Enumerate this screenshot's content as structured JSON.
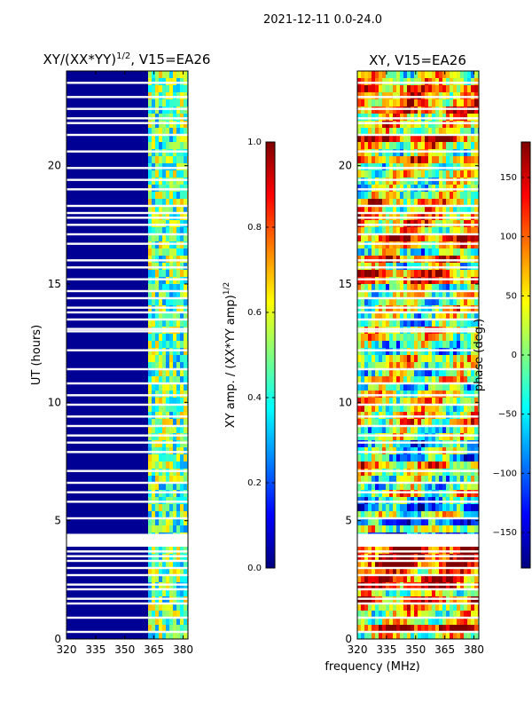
{
  "suptitle": "2021-12-11 0.0-24.0",
  "chart_data": [
    {
      "type": "heatmap",
      "title": "XY/(XX*YY)",
      "title_exponent": "1/2",
      "title_suffix": ", V15=EA26",
      "xlabel": "",
      "ylabel": "UT (hours)",
      "xlim": [
        320,
        382.5
      ],
      "ylim": [
        0,
        24
      ],
      "xticks": [
        "320",
        "335",
        "350",
        "365",
        "380"
      ],
      "yticks": [
        "0",
        "5",
        "10",
        "15",
        "20"
      ],
      "colorbar": {
        "label": "XY amp. / (XX*YY amp)",
        "label_exponent": "1/2",
        "range": [
          0.0,
          1.0
        ],
        "ticks": [
          "0.0",
          "0.2",
          "0.4",
          "0.6",
          "0.8",
          "1.0"
        ],
        "colormap": "jet"
      },
      "typical_values": {
        "below_362_MHz": 0.02,
        "above_362_MHz": 0.45
      }
    },
    {
      "type": "heatmap",
      "title": "XY, V15=EA26",
      "xlabel": "frequency (MHz)",
      "ylabel": "",
      "xlim": [
        320,
        382.5
      ],
      "ylim": [
        0,
        24
      ],
      "xticks": [
        "320",
        "335",
        "350",
        "365",
        "380"
      ],
      "yticks": [
        "0",
        "5",
        "10",
        "15",
        "20"
      ],
      "colorbar": {
        "label": "phase (deg.)",
        "range": [
          -180,
          180
        ],
        "ticks": [
          "−150",
          "−100",
          "−50",
          "0",
          "50",
          "100",
          "150"
        ],
        "colormap": "jet"
      }
    }
  ],
  "flagged_ut_hours": [
    0.3,
    0.9,
    1.5,
    1.7,
    2.1,
    2.3,
    2.7,
    3.0,
    3.3,
    3.5,
    3.7,
    4.4,
    5.1,
    5.8,
    6.2,
    6.6,
    7.1,
    7.9,
    8.3,
    8.6,
    9.0,
    9.4,
    9.9,
    10.3,
    10.8,
    11.4,
    12.2,
    13.0,
    13.1,
    13.5,
    13.8,
    14.0,
    14.4,
    14.7,
    15.2,
    15.7,
    16.0,
    16.7,
    17.1,
    17.5,
    17.8,
    18.0,
    18.3,
    19.0,
    19.4,
    19.9,
    20.6,
    21.3,
    21.8,
    22.0,
    22.4,
    22.9,
    23.5
  ]
}
